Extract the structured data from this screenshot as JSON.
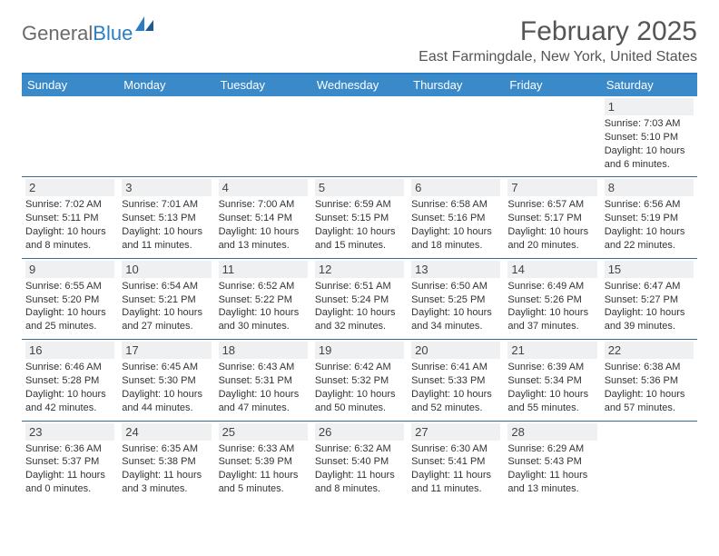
{
  "brand": {
    "text_gray": "General",
    "text_blue": "Blue"
  },
  "title": "February 2025",
  "location": "East Farmingdale, New York, United States",
  "colors": {
    "header_bar": "#3a8ac9",
    "accent_line": "#2a7ec5",
    "day_bg": "#eef0f1",
    "week_border": "#3a6a9a",
    "text": "#333333"
  },
  "daysOfWeek": [
    "Sunday",
    "Monday",
    "Tuesday",
    "Wednesday",
    "Thursday",
    "Friday",
    "Saturday"
  ],
  "weeks": [
    [
      {
        "day": "",
        "lines": []
      },
      {
        "day": "",
        "lines": []
      },
      {
        "day": "",
        "lines": []
      },
      {
        "day": "",
        "lines": []
      },
      {
        "day": "",
        "lines": []
      },
      {
        "day": "",
        "lines": []
      },
      {
        "day": "1",
        "lines": [
          "Sunrise: 7:03 AM",
          "Sunset: 5:10 PM",
          "Daylight: 10 hours and 6 minutes."
        ]
      }
    ],
    [
      {
        "day": "2",
        "lines": [
          "Sunrise: 7:02 AM",
          "Sunset: 5:11 PM",
          "Daylight: 10 hours and 8 minutes."
        ]
      },
      {
        "day": "3",
        "lines": [
          "Sunrise: 7:01 AM",
          "Sunset: 5:13 PM",
          "Daylight: 10 hours and 11 minutes."
        ]
      },
      {
        "day": "4",
        "lines": [
          "Sunrise: 7:00 AM",
          "Sunset: 5:14 PM",
          "Daylight: 10 hours and 13 minutes."
        ]
      },
      {
        "day": "5",
        "lines": [
          "Sunrise: 6:59 AM",
          "Sunset: 5:15 PM",
          "Daylight: 10 hours and 15 minutes."
        ]
      },
      {
        "day": "6",
        "lines": [
          "Sunrise: 6:58 AM",
          "Sunset: 5:16 PM",
          "Daylight: 10 hours and 18 minutes."
        ]
      },
      {
        "day": "7",
        "lines": [
          "Sunrise: 6:57 AM",
          "Sunset: 5:17 PM",
          "Daylight: 10 hours and 20 minutes."
        ]
      },
      {
        "day": "8",
        "lines": [
          "Sunrise: 6:56 AM",
          "Sunset: 5:19 PM",
          "Daylight: 10 hours and 22 minutes."
        ]
      }
    ],
    [
      {
        "day": "9",
        "lines": [
          "Sunrise: 6:55 AM",
          "Sunset: 5:20 PM",
          "Daylight: 10 hours and 25 minutes."
        ]
      },
      {
        "day": "10",
        "lines": [
          "Sunrise: 6:54 AM",
          "Sunset: 5:21 PM",
          "Daylight: 10 hours and 27 minutes."
        ]
      },
      {
        "day": "11",
        "lines": [
          "Sunrise: 6:52 AM",
          "Sunset: 5:22 PM",
          "Daylight: 10 hours and 30 minutes."
        ]
      },
      {
        "day": "12",
        "lines": [
          "Sunrise: 6:51 AM",
          "Sunset: 5:24 PM",
          "Daylight: 10 hours and 32 minutes."
        ]
      },
      {
        "day": "13",
        "lines": [
          "Sunrise: 6:50 AM",
          "Sunset: 5:25 PM",
          "Daylight: 10 hours and 34 minutes."
        ]
      },
      {
        "day": "14",
        "lines": [
          "Sunrise: 6:49 AM",
          "Sunset: 5:26 PM",
          "Daylight: 10 hours and 37 minutes."
        ]
      },
      {
        "day": "15",
        "lines": [
          "Sunrise: 6:47 AM",
          "Sunset: 5:27 PM",
          "Daylight: 10 hours and 39 minutes."
        ]
      }
    ],
    [
      {
        "day": "16",
        "lines": [
          "Sunrise: 6:46 AM",
          "Sunset: 5:28 PM",
          "Daylight: 10 hours and 42 minutes."
        ]
      },
      {
        "day": "17",
        "lines": [
          "Sunrise: 6:45 AM",
          "Sunset: 5:30 PM",
          "Daylight: 10 hours and 44 minutes."
        ]
      },
      {
        "day": "18",
        "lines": [
          "Sunrise: 6:43 AM",
          "Sunset: 5:31 PM",
          "Daylight: 10 hours and 47 minutes."
        ]
      },
      {
        "day": "19",
        "lines": [
          "Sunrise: 6:42 AM",
          "Sunset: 5:32 PM",
          "Daylight: 10 hours and 50 minutes."
        ]
      },
      {
        "day": "20",
        "lines": [
          "Sunrise: 6:41 AM",
          "Sunset: 5:33 PM",
          "Daylight: 10 hours and 52 minutes."
        ]
      },
      {
        "day": "21",
        "lines": [
          "Sunrise: 6:39 AM",
          "Sunset: 5:34 PM",
          "Daylight: 10 hours and 55 minutes."
        ]
      },
      {
        "day": "22",
        "lines": [
          "Sunrise: 6:38 AM",
          "Sunset: 5:36 PM",
          "Daylight: 10 hours and 57 minutes."
        ]
      }
    ],
    [
      {
        "day": "23",
        "lines": [
          "Sunrise: 6:36 AM",
          "Sunset: 5:37 PM",
          "Daylight: 11 hours and 0 minutes."
        ]
      },
      {
        "day": "24",
        "lines": [
          "Sunrise: 6:35 AM",
          "Sunset: 5:38 PM",
          "Daylight: 11 hours and 3 minutes."
        ]
      },
      {
        "day": "25",
        "lines": [
          "Sunrise: 6:33 AM",
          "Sunset: 5:39 PM",
          "Daylight: 11 hours and 5 minutes."
        ]
      },
      {
        "day": "26",
        "lines": [
          "Sunrise: 6:32 AM",
          "Sunset: 5:40 PM",
          "Daylight: 11 hours and 8 minutes."
        ]
      },
      {
        "day": "27",
        "lines": [
          "Sunrise: 6:30 AM",
          "Sunset: 5:41 PM",
          "Daylight: 11 hours and 11 minutes."
        ]
      },
      {
        "day": "28",
        "lines": [
          "Sunrise: 6:29 AM",
          "Sunset: 5:43 PM",
          "Daylight: 11 hours and 13 minutes."
        ]
      },
      {
        "day": "",
        "lines": []
      }
    ]
  ]
}
